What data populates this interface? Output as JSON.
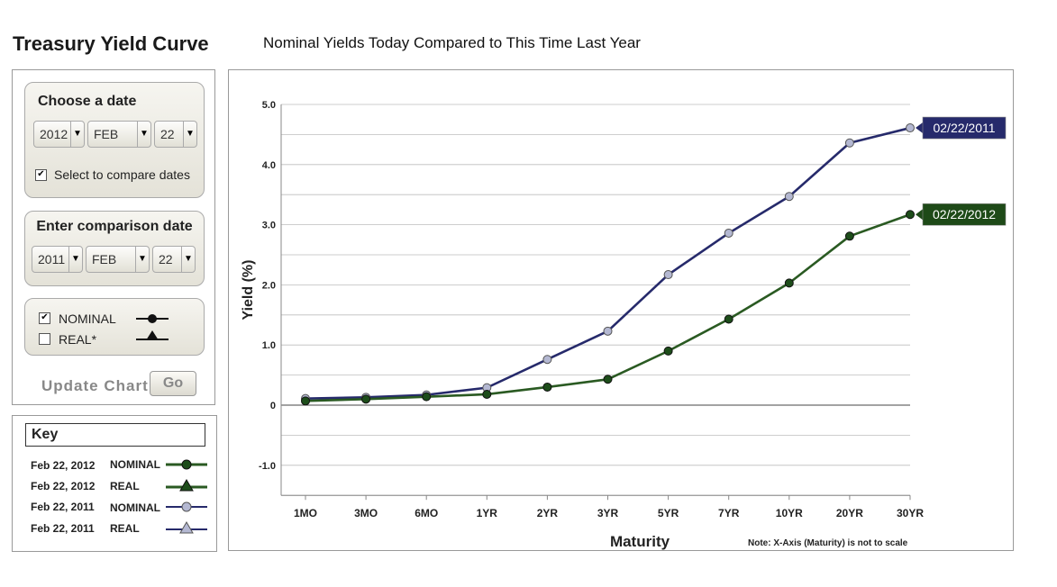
{
  "header": {
    "title": "Treasury Yield Curve",
    "subtitle": "Nominal Yields Today Compared to This Time Last Year"
  },
  "sidebar": {
    "date_panel": {
      "title": "Choose a date",
      "year": "2012",
      "month": "FEB",
      "day": "22",
      "compare_label": "Select to compare dates",
      "compare_checked": true
    },
    "comparison_panel": {
      "title": "Enter comparison date",
      "year": "2011",
      "month": "FEB",
      "day": "22"
    },
    "type_panel": {
      "nominal_label": "NOMINAL",
      "nominal_checked": true,
      "real_label": "REAL*",
      "real_checked": false
    },
    "update_label": "Update Chart",
    "go_label": "Go"
  },
  "key": {
    "title": "Key",
    "rows": [
      {
        "date": "Feb 22, 2012",
        "type": "NOMINAL"
      },
      {
        "date": "Feb 22, 2012",
        "type": "REAL"
      },
      {
        "date": "Feb 22, 2011",
        "type": "NOMINAL"
      },
      {
        "date": "Feb 22, 2011",
        "type": "REAL"
      }
    ]
  },
  "colors": {
    "series_2011": "#262a6b",
    "series_2012": "#2a5a22",
    "marker_2011": "#b4b8d2",
    "marker_2012": "#1d4d1a",
    "label_2011_bg": "#262a6b",
    "label_2012_bg": "#1e4a18"
  },
  "chart_data": {
    "type": "line",
    "xlabel": "Maturity",
    "ylabel": "Yield   (%)",
    "note": "Note: X-Axis (Maturity) is not to scale",
    "categories": [
      "1MO",
      "3MO",
      "6MO",
      "1YR",
      "2YR",
      "3YR",
      "5YR",
      "7YR",
      "10YR",
      "20YR",
      "30YR"
    ],
    "ylim": [
      -1.5,
      5.0
    ],
    "yticks": [
      5.0,
      4.0,
      3.0,
      2.0,
      1.0,
      0,
      -1.0
    ],
    "ytick_labels": [
      "5.0",
      "4.0",
      "3.0",
      "2.0",
      "1.0",
      "0",
      "-1.0"
    ],
    "grid": true,
    "series": [
      {
        "name": "02/22/2011",
        "values": [
          0.11,
          0.13,
          0.17,
          0.29,
          0.76,
          1.23,
          2.17,
          2.86,
          3.47,
          4.36,
          4.61
        ]
      },
      {
        "name": "02/22/2012",
        "values": [
          0.07,
          0.1,
          0.14,
          0.18,
          0.3,
          0.43,
          0.9,
          1.43,
          2.03,
          2.81,
          3.17
        ]
      }
    ]
  }
}
